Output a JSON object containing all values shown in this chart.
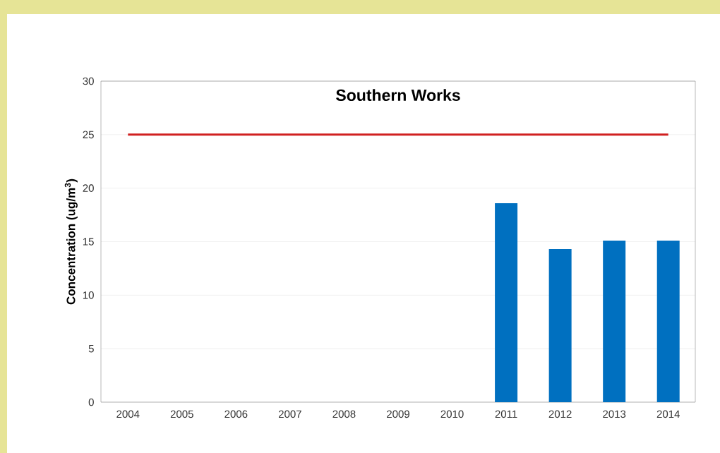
{
  "chart_data": {
    "type": "bar",
    "title": "Southern Works",
    "ylabel": "Concentration (ug/m$^{3}$)",
    "categories": [
      "2004",
      "2005",
      "2006",
      "2007",
      "2008",
      "2009",
      "2010",
      "2011",
      "2012",
      "2013",
      "2014"
    ],
    "series": [
      {
        "color": "#0070c0",
        "values": [
          null,
          null,
          null,
          null,
          null,
          null,
          null,
          18.6,
          14.3,
          15.1,
          15.1
        ]
      },
      {
        "type": "line",
        "color": "#d02020",
        "values": [
          25,
          25,
          25,
          25,
          25,
          25,
          25,
          25,
          25,
          25,
          25
        ]
      }
    ],
    "ylim": [
      0,
      30
    ],
    "yticks": [
      0,
      5,
      10,
      15,
      20,
      25,
      30
    ],
    "grid": "y"
  }
}
